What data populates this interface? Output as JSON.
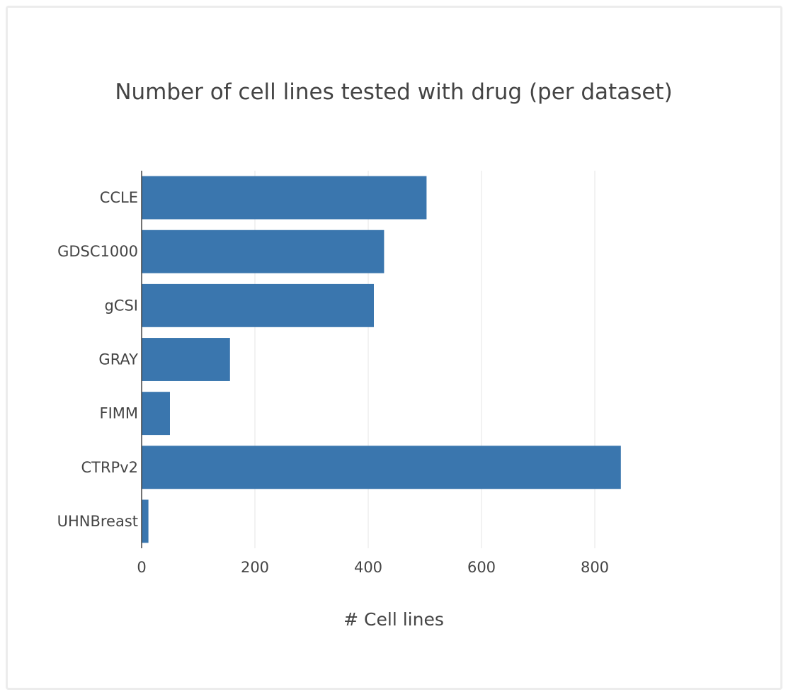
{
  "chart_data": {
    "type": "bar",
    "orientation": "horizontal",
    "title": "Number of cell lines tested with drug (per dataset)",
    "xlabel": "# Cell lines",
    "ylabel": "",
    "categories": [
      "CCLE",
      "GDSC1000",
      "gCSI",
      "GRAY",
      "FIMM",
      "CTRPv2",
      "UHNBreast"
    ],
    "values": [
      503,
      428,
      410,
      156,
      50,
      846,
      12
    ],
    "xlim": [
      0,
      1000
    ],
    "xticks": [
      0,
      200,
      400,
      600,
      800
    ],
    "grid": "vertical",
    "legend": "none",
    "bar_color": "#3a76ae"
  }
}
